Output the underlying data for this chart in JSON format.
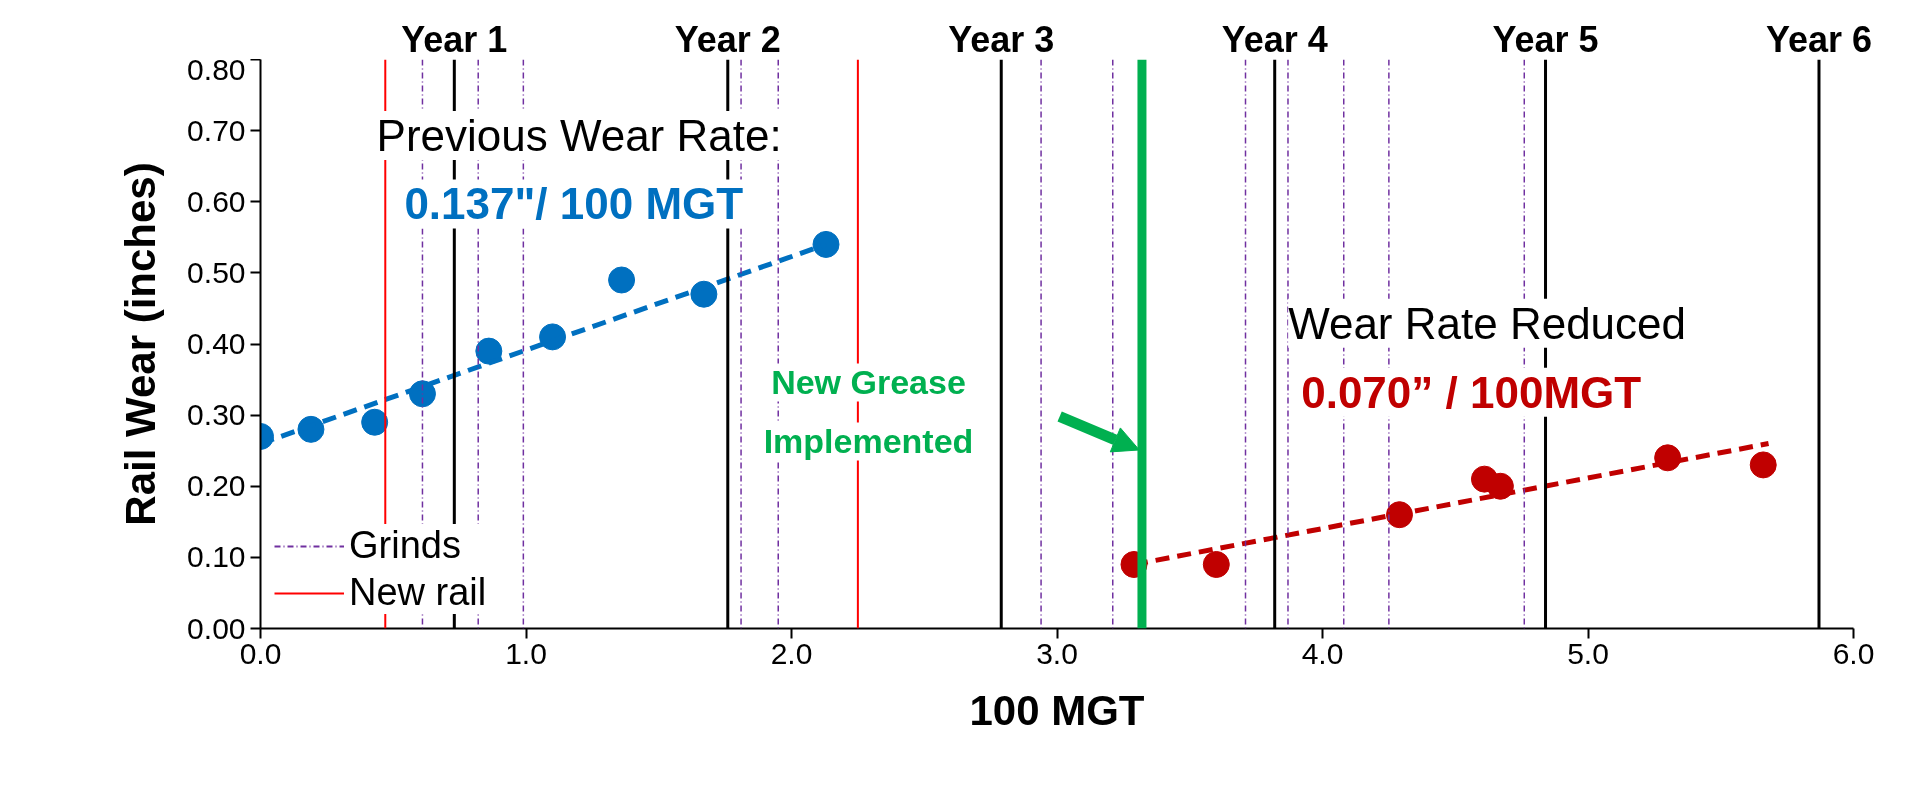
{
  "chart_data": {
    "type": "scatter",
    "xlabel": "100 MGT",
    "ylabel": "Rail Wear (inches)",
    "xlim": [
      0,
      6
    ],
    "ylim": [
      0,
      0.8
    ],
    "xticks": [
      {
        "value": 0,
        "label": "0.0"
      },
      {
        "value": 1,
        "label": "1.0"
      },
      {
        "value": 2,
        "label": "2.0"
      },
      {
        "value": 3,
        "label": "3.0"
      },
      {
        "value": 4,
        "label": "4.0"
      },
      {
        "value": 5,
        "label": "5.0"
      },
      {
        "value": 6,
        "label": "6.0"
      }
    ],
    "yticks": [
      {
        "value": 0,
        "label": "0.00"
      },
      {
        "value": 0.1,
        "label": "0.10"
      },
      {
        "value": 0.2,
        "label": "0.20"
      },
      {
        "value": 0.3,
        "label": "0.30"
      },
      {
        "value": 0.4,
        "label": "0.40"
      },
      {
        "value": 0.5,
        "label": "0.50"
      },
      {
        "value": 0.6,
        "label": "0.60"
      },
      {
        "value": 0.7,
        "label": "0.70"
      },
      {
        "value": 0.8,
        "label": "0.80"
      }
    ],
    "grid": false,
    "legend": "bottom left",
    "marker": "circle",
    "series": [
      {
        "color": "#0070c0",
        "x": [
          0,
          0.19,
          0.43,
          0.61,
          0.86,
          1.1,
          1.36,
          1.67,
          2.13
        ],
        "values": [
          0.27,
          0.28,
          0.29,
          0.33,
          0.39,
          0.41,
          0.49,
          0.47,
          0.54
        ]
      },
      {
        "type": "line",
        "color": "#0070c0",
        "line_style": "dashed",
        "marker": "none",
        "x": [
          0,
          2.13
        ],
        "values": [
          0.26,
          0.54
        ]
      },
      {
        "color": "#c00000",
        "x": [
          3.29,
          3.6,
          4.29,
          4.61,
          4.67,
          5.3,
          5.66
        ],
        "values": [
          0.09,
          0.09,
          0.16,
          0.21,
          0.2,
          0.24,
          0.23
        ]
      },
      {
        "type": "line",
        "color": "#c00000",
        "line_style": "dashed",
        "marker": "none",
        "x": [
          3.29,
          5.68
        ],
        "values": [
          0.09,
          0.26
        ]
      }
    ],
    "ref_lines": [
      {
        "axis": "x",
        "value": 0.61,
        "label": "Grinds",
        "color": "#7030a0",
        "line_style": "dashdot"
      },
      {
        "axis": "x",
        "value": 0.47,
        "label": "New rail",
        "color": "#ff0000",
        "line_style": "solid"
      },
      {
        "axis": "x",
        "value": 2.25,
        "color": "#ff0000",
        "line_style": "solid"
      },
      {
        "axis": "x",
        "value": 0.82,
        "color": "#7030a0",
        "line_style": "dashdot"
      },
      {
        "axis": "x",
        "value": 0.99,
        "color": "#7030a0",
        "line_style": "dashdot"
      },
      {
        "axis": "x",
        "value": 1.81,
        "color": "#7030a0",
        "line_style": "dashdot"
      },
      {
        "axis": "x",
        "value": 1.95,
        "color": "#7030a0",
        "line_style": "dashdot"
      },
      {
        "axis": "x",
        "value": 2.94,
        "color": "#7030a0",
        "line_style": "dashdot"
      },
      {
        "axis": "x",
        "value": 3.21,
        "color": "#7030a0",
        "line_style": "dashdot"
      },
      {
        "axis": "x",
        "value": 3.71,
        "color": "#7030a0",
        "line_style": "dashdot"
      },
      {
        "axis": "x",
        "value": 3.87,
        "color": "#7030a0",
        "line_style": "dashdot"
      },
      {
        "axis": "x",
        "value": 4.08,
        "color": "#7030a0",
        "line_style": "dashdot"
      },
      {
        "axis": "x",
        "value": 4.25,
        "color": "#7030a0",
        "line_style": "dashdot"
      },
      {
        "axis": "x",
        "value": 4.76,
        "color": "#7030a0",
        "line_style": "dashdot"
      },
      {
        "axis": "x",
        "value": 0.73,
        "color": "#000000",
        "line_style": "solid"
      },
      {
        "axis": "x",
        "value": 1.76,
        "color": "#000000",
        "line_style": "solid"
      },
      {
        "axis": "x",
        "value": 2.79,
        "color": "#000000",
        "line_style": "solid"
      },
      {
        "axis": "x",
        "value": 3.82,
        "color": "#000000",
        "line_style": "solid"
      },
      {
        "axis": "x",
        "value": 4.84,
        "color": "#000000",
        "line_style": "solid"
      },
      {
        "axis": "x",
        "value": 5.87,
        "color": "#000000",
        "line_style": "solid"
      },
      {
        "axis": "x",
        "value": 3.32,
        "color": "#00b050",
        "line_style": "solid"
      }
    ],
    "annotations": [
      {
        "text": "Year 1",
        "x": 0.73,
        "y": 0.8
      },
      {
        "text": "Year 2",
        "x": 1.76,
        "y": 0.8
      },
      {
        "text": "Year 3",
        "x": 2.79,
        "y": 0.8
      },
      {
        "text": "Year 4",
        "x": 3.82,
        "y": 0.8
      },
      {
        "text": "Year 5",
        "x": 4.84,
        "y": 0.8
      },
      {
        "text": "Year 6",
        "x": 5.87,
        "y": 0.8
      },
      "Previous Wear Rate:",
      "0.137\"/ 100 MGT",
      "New Grease",
      "Implemented",
      "Wear Rate Reduced",
      "0.070” / 100MGT"
    ]
  }
}
